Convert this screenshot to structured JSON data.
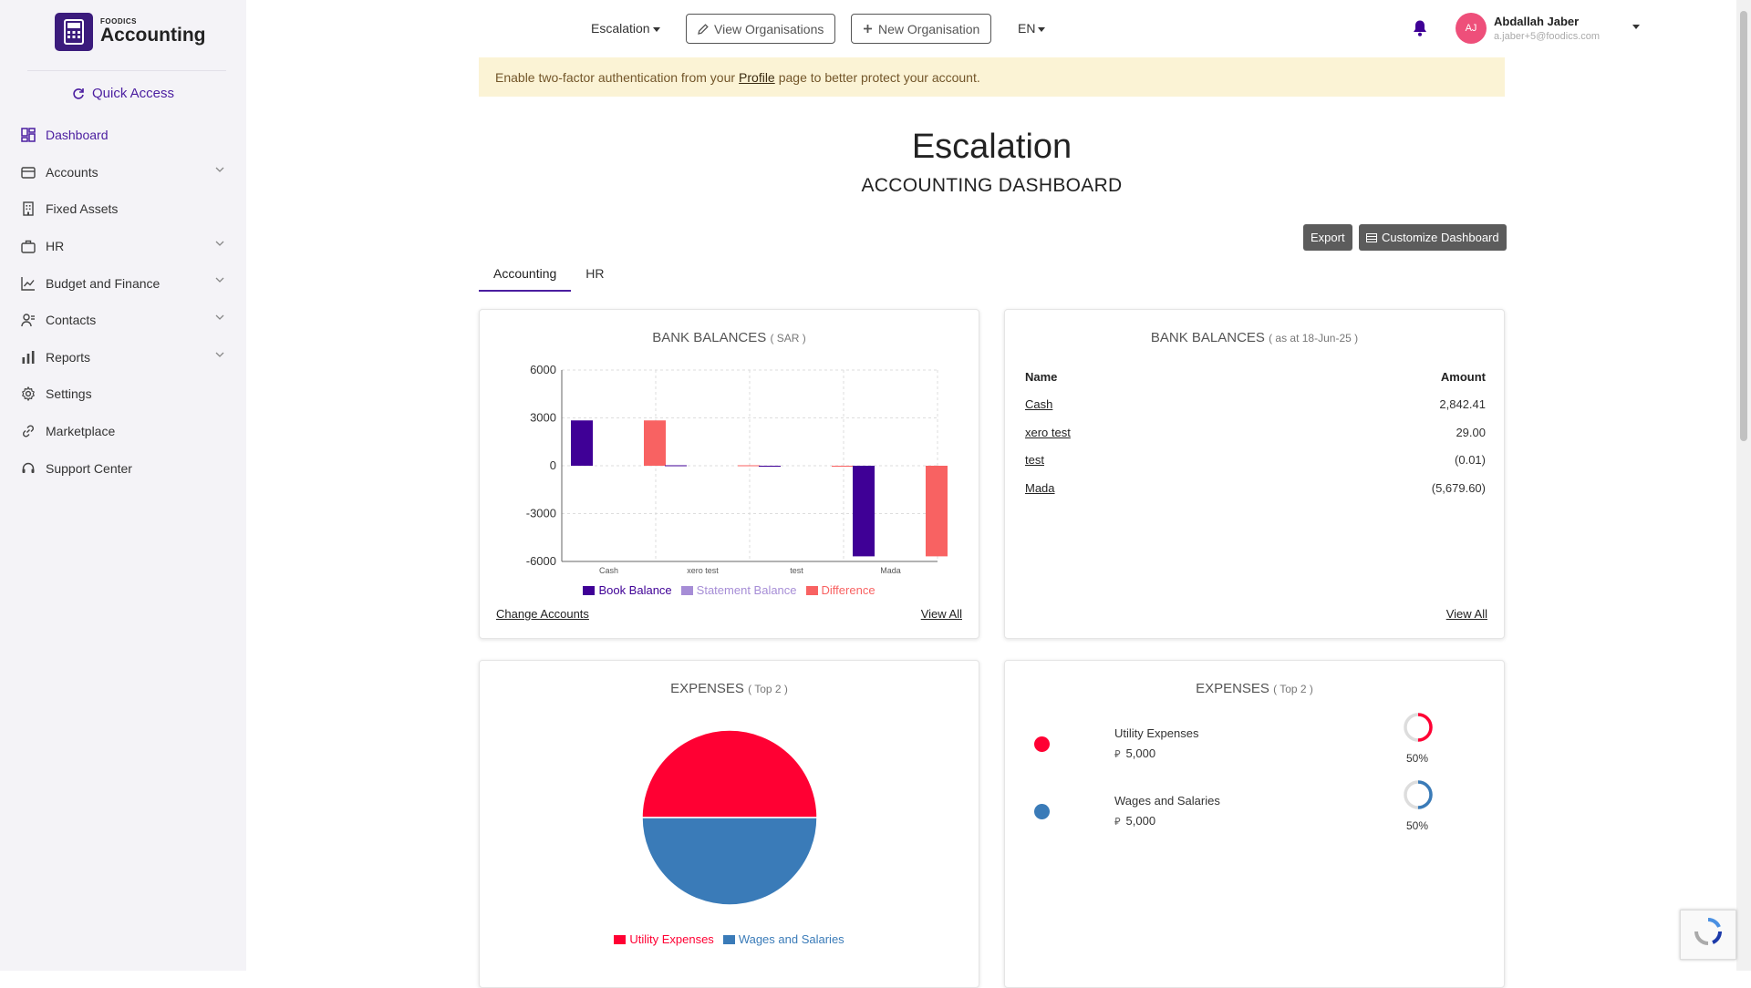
{
  "sidebar": {
    "logo_small": "FOODICS",
    "logo_big": "Accounting",
    "quick_access": "Quick Access",
    "items": [
      {
        "label": "Dashboard",
        "icon": "dashboard-icon",
        "active": true,
        "chevron": false
      },
      {
        "label": "Accounts",
        "icon": "wallet-icon",
        "chevron": true
      },
      {
        "label": "Fixed Assets",
        "icon": "building-icon",
        "chevron": false
      },
      {
        "label": "HR",
        "icon": "briefcase-icon",
        "chevron": true
      },
      {
        "label": "Budget and Finance",
        "icon": "line-chart-icon",
        "chevron": true
      },
      {
        "label": "Contacts",
        "icon": "contacts-icon",
        "chevron": true
      },
      {
        "label": "Reports",
        "icon": "bar-chart-icon",
        "chevron": true
      },
      {
        "label": "Settings",
        "icon": "gear-icon",
        "chevron": false
      },
      {
        "label": "Marketplace",
        "icon": "link-icon",
        "chevron": false
      },
      {
        "label": "Support Center",
        "icon": "headset-icon",
        "chevron": false
      }
    ]
  },
  "header": {
    "org_selector": "Escalation",
    "view_orgs": "View Organisations",
    "new_org": "New Organisation",
    "language": "EN",
    "user_initials": "AJ",
    "user_name": "Abdallah Jaber",
    "user_email": "a.jaber+5@foodics.com"
  },
  "alert": {
    "before": "Enable two-factor authentication from your",
    "link": "Profile",
    "after": "page to better protect your account."
  },
  "page": {
    "org_title": "Escalation",
    "dashboard_title": "ACCOUNTING DASHBOARD",
    "export": "Export",
    "customize": "Customize Dashboard",
    "tabs": [
      "Accounting",
      "HR"
    ]
  },
  "bank_chart_card": {
    "title": "BANK BALANCES",
    "subtitle": "( SAR )",
    "change_accounts": "Change Accounts",
    "view_all": "View All"
  },
  "bank_table_card": {
    "title": "BANK BALANCES",
    "subtitle": "( as at 18-Jun-25 )",
    "col_name": "Name",
    "col_amount": "Amount",
    "rows": [
      {
        "name": "Cash",
        "amount": "2,842.41"
      },
      {
        "name": "xero test",
        "amount": "29.00"
      },
      {
        "name": "test",
        "amount": "(0.01)"
      },
      {
        "name": "Mada",
        "amount": "(5,679.60)"
      }
    ],
    "view_all": "View All"
  },
  "expenses_chart_card": {
    "title": "EXPENSES",
    "subtitle": "( Top 2 )"
  },
  "expenses_list_card": {
    "title": "EXPENSES",
    "subtitle": "( Top 2 )",
    "items": [
      {
        "name": "Utility Expenses",
        "amount": "5,000",
        "percent": "50%",
        "color": "#ff0033"
      },
      {
        "name": "Wages and Salaries",
        "amount": "5,000",
        "percent": "50%",
        "color": "#3a7bb8"
      }
    ]
  },
  "colors": {
    "accent": "#4b1ea0",
    "book": "#3f0096",
    "statement": "#a68dd6",
    "difference": "#f86262",
    "utility": "#ff0033",
    "wages": "#3a7bb8"
  },
  "chart_data": [
    {
      "type": "bar",
      "categories": [
        "Cash",
        "xero test",
        "test",
        "Mada"
      ],
      "series": [
        {
          "name": "Book Balance",
          "values": [
            2842.41,
            29.0,
            -0.01,
            -5679.6
          ]
        },
        {
          "name": "Statement Balance",
          "values": [
            0,
            0,
            0,
            0
          ]
        },
        {
          "name": "Difference",
          "values": [
            2842.41,
            29.0,
            -0.01,
            -5679.6
          ]
        }
      ],
      "yticks": [
        6000,
        3000,
        0,
        -3000,
        -6000
      ],
      "ylim": [
        -6000,
        6000
      ],
      "grid": true,
      "legend": "bottom"
    },
    {
      "type": "pie",
      "labels": [
        "Utility Expenses",
        "Wages and Salaries"
      ],
      "values": [
        5000,
        5000
      ],
      "legend": "bottom"
    }
  ]
}
